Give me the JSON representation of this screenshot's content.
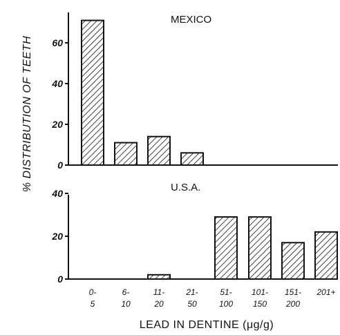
{
  "chart_data": {
    "type": "bar",
    "ylabel": "% DISTRIBUTION OF TEETH",
    "xlabel": "LEAD IN DENTINE (μg/g)",
    "categories": [
      {
        "top": "0-",
        "bottom": "5"
      },
      {
        "top": "6-",
        "bottom": "10"
      },
      {
        "top": "11-",
        "bottom": "20"
      },
      {
        "top": "21-",
        "bottom": "50"
      },
      {
        "top": "51-",
        "bottom": "100"
      },
      {
        "top": "101-",
        "bottom": "150"
      },
      {
        "top": "151-",
        "bottom": "200"
      },
      {
        "top": "201+",
        "bottom": ""
      }
    ],
    "panels": [
      {
        "title": "MEXICO",
        "ylim": [
          0,
          70
        ],
        "yticks": [
          0,
          20,
          40,
          60
        ],
        "values": [
          71,
          11,
          14,
          6,
          0,
          0,
          0,
          0
        ]
      },
      {
        "title": "U.S.A.",
        "ylim": [
          0,
          40
        ],
        "yticks": [
          0,
          20,
          40
        ],
        "values": [
          0,
          0,
          2,
          0,
          29,
          29,
          17,
          22
        ]
      }
    ],
    "bar_fill": "hatched",
    "colors": {
      "ink": "#111111",
      "background": "#ffffff"
    }
  }
}
